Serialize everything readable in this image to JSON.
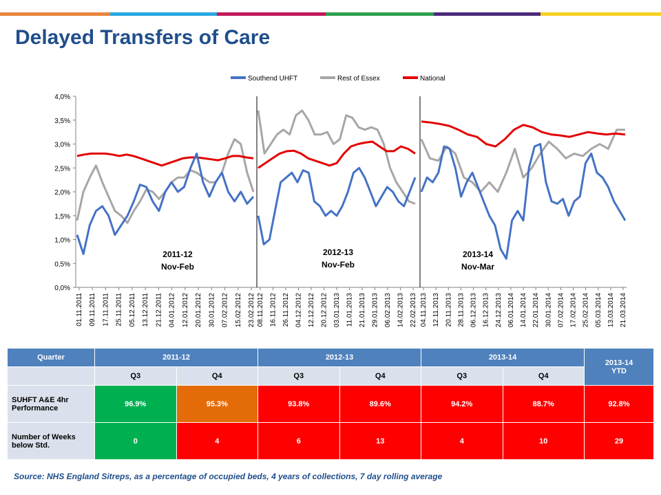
{
  "page": {
    "title": "Delayed Transfers of Care",
    "source": "Source: NHS England Sitreps, as a percentage of occupied beds, 4 years of collections, 7 day rolling average"
  },
  "colors": {
    "bar": [
      "#e8853d",
      "#29a8e0",
      "#c2185b",
      "#2e9e4f",
      "#4b2a7b",
      "#f5d020"
    ],
    "southend": "#4472c4",
    "essex": "#a6a6a6",
    "national": "#e30000"
  },
  "chart_data": {
    "type": "line",
    "ylim": [
      0,
      4
    ],
    "yticks": [
      "0,0%",
      "0,5%",
      "1,0%",
      "1,5%",
      "2,0%",
      "2,5%",
      "3,0%",
      "3,5%",
      "4,0%"
    ],
    "grid": false,
    "legend_position": "top",
    "series_names": [
      "Southend UHFT",
      "Rest of Essex",
      "National"
    ],
    "panels": [
      {
        "label": "2011-12",
        "sublabel": "Nov-Feb",
        "xticks": [
          "01.11.2011",
          "09.11.2011",
          "17.11.2011",
          "25.11.2011",
          "05.12.2011",
          "13.12.2011",
          "21.12.2011",
          "04.01.2012",
          "12.01.2012",
          "20.01.2012",
          "30.01.2012",
          "07.02.2012",
          "15.02.2012",
          "23.02.2012"
        ],
        "southend": [
          1.1,
          0.7,
          1.3,
          1.6,
          1.7,
          1.5,
          1.1,
          1.3,
          1.5,
          1.8,
          2.15,
          2.1,
          1.8,
          1.6,
          2.0,
          2.2,
          2.0,
          2.1,
          2.5,
          2.8,
          2.2,
          1.9,
          2.2,
          2.4,
          2.0,
          1.8,
          2.0,
          1.75,
          1.9
        ],
        "essex": [
          1.4,
          2.0,
          2.3,
          2.55,
          2.2,
          1.9,
          1.6,
          1.5,
          1.35,
          1.6,
          1.8,
          2.05,
          2.0,
          1.85,
          2.0,
          2.2,
          2.3,
          2.3,
          2.45,
          2.4,
          2.3,
          2.2,
          2.2,
          2.4,
          2.8,
          3.1,
          3.0,
          2.4,
          2.0
        ],
        "national": [
          2.75,
          2.78,
          2.8,
          2.8,
          2.8,
          2.78,
          2.75,
          2.78,
          2.75,
          2.7,
          2.65,
          2.6,
          2.55,
          2.6,
          2.65,
          2.7,
          2.72,
          2.72,
          2.7,
          2.68,
          2.66,
          2.7,
          2.75,
          2.75,
          2.72,
          2.7
        ]
      },
      {
        "label": "2012-13",
        "sublabel": "Nov-Feb",
        "xticks": [
          "08.11.2012",
          "16.11.2012",
          "26.11.2012",
          "04.12.2012",
          "12.12.2012",
          "20.12.2012",
          "03.01.2013",
          "11.01.2013",
          "21.01.2013",
          "29.01.2013",
          "06.02.2013",
          "14.02.2013",
          "22.02.2013"
        ],
        "southend": [
          1.5,
          0.9,
          1.0,
          1.6,
          2.2,
          2.3,
          2.4,
          2.2,
          2.45,
          2.4,
          1.8,
          1.7,
          1.5,
          1.6,
          1.5,
          1.7,
          2.0,
          2.4,
          2.5,
          2.3,
          2.0,
          1.7,
          1.9,
          2.1,
          2.0,
          1.8,
          1.7,
          2.0,
          2.3
        ],
        "essex": [
          3.7,
          2.8,
          3.0,
          3.2,
          3.3,
          3.2,
          3.6,
          3.7,
          3.5,
          3.2,
          3.2,
          3.25,
          3.0,
          3.1,
          3.6,
          3.55,
          3.35,
          3.3,
          3.35,
          3.3,
          3.0,
          2.5,
          2.2,
          2.0,
          1.8,
          1.75
        ],
        "national": [
          2.5,
          2.6,
          2.7,
          2.8,
          2.85,
          2.86,
          2.8,
          2.7,
          2.65,
          2.6,
          2.55,
          2.6,
          2.8,
          2.95,
          3.0,
          3.03,
          3.05,
          2.95,
          2.85,
          2.85,
          2.95,
          2.9,
          2.8
        ]
      },
      {
        "label": "2013-14",
        "sublabel": "Nov-Mar",
        "xticks": [
          "04.11.2013",
          "12.11.2013",
          "20.11.2013",
          "28.11.2013",
          "06.12.2013",
          "16.12.2013",
          "24.12.2013",
          "06.01.2014",
          "14.01.2014",
          "22.01.2014",
          "30.01.2014",
          "07.02.2014",
          "17.02.2014",
          "25.02.2014",
          "05.03.2014",
          "13.03.2014",
          "21.03.2014"
        ],
        "southend": [
          2.0,
          2.3,
          2.2,
          2.4,
          2.95,
          2.9,
          2.5,
          1.9,
          2.2,
          2.4,
          2.1,
          1.8,
          1.5,
          1.3,
          0.8,
          0.6,
          1.4,
          1.6,
          1.4,
          2.5,
          2.95,
          3.0,
          2.2,
          1.8,
          1.75,
          1.85,
          1.5,
          1.8,
          1.9,
          2.6,
          2.8,
          2.4,
          2.3,
          2.1,
          1.8,
          1.6,
          1.4
        ],
        "essex": [
          3.1,
          2.7,
          2.65,
          2.95,
          2.8,
          2.3,
          2.2,
          2.0,
          2.2,
          2.0,
          2.4,
          2.9,
          2.3,
          2.5,
          2.8,
          3.05,
          2.9,
          2.7,
          2.8,
          2.75,
          2.9,
          3.0,
          2.9,
          3.3,
          3.3
        ],
        "national": [
          3.47,
          3.45,
          3.42,
          3.38,
          3.3,
          3.2,
          3.15,
          3.0,
          2.95,
          3.1,
          3.3,
          3.4,
          3.35,
          3.25,
          3.2,
          3.18,
          3.15,
          3.2,
          3.25,
          3.22,
          3.2,
          3.22,
          3.2
        ]
      }
    ]
  },
  "table": {
    "h_quarter": "Quarter",
    "y1": "2011-12",
    "y2": "2012-13",
    "y3": "2013-14",
    "ytd1": "2013-14",
    "ytd2": "YTD",
    "q": [
      "Q3",
      "Q4",
      "Q3",
      "Q4",
      "Q3",
      "Q4"
    ],
    "r1_label": "SUHFT A&E 4hr Performance",
    "r1": [
      "96.9%",
      "95.3%",
      "93.8%",
      "89.6%",
      "94.2%",
      "88.7%",
      "92.8%"
    ],
    "r2_label": "Number of Weeks below Std.",
    "r2": [
      "0",
      "4",
      "6",
      "13",
      "4",
      "10",
      "29"
    ]
  }
}
